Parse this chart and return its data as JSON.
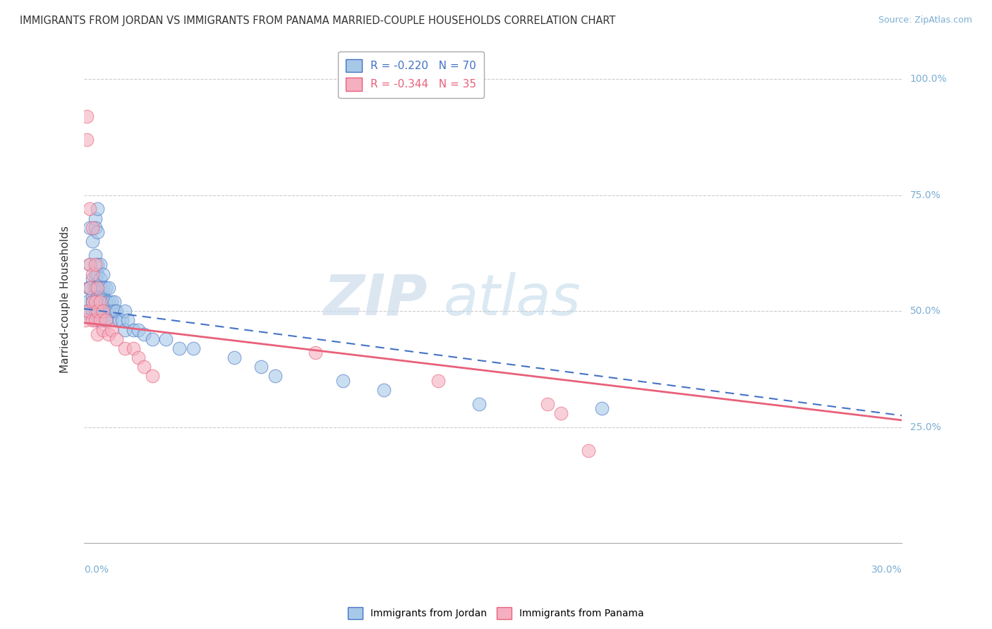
{
  "title": "IMMIGRANTS FROM JORDAN VS IMMIGRANTS FROM PANAMA MARRIED-COUPLE HOUSEHOLDS CORRELATION CHART",
  "source": "Source: ZipAtlas.com",
  "R_jordan": -0.22,
  "N_jordan": 70,
  "R_panama": -0.344,
  "N_panama": 35,
  "color_jordan": "#a8c8e8",
  "color_panama": "#f4b0c0",
  "line_color_jordan": "#4472c4",
  "line_color_panama": "#e8607a",
  "watermark_zip": "ZIP",
  "watermark_atlas": "atlas",
  "jordan_x": [
    0.0005,
    0.001,
    0.001,
    0.0015,
    0.002,
    0.002,
    0.002,
    0.003,
    0.003,
    0.003,
    0.003,
    0.003,
    0.004,
    0.004,
    0.004,
    0.004,
    0.004,
    0.004,
    0.004,
    0.005,
    0.005,
    0.005,
    0.005,
    0.005,
    0.005,
    0.005,
    0.005,
    0.006,
    0.006,
    0.006,
    0.006,
    0.006,
    0.006,
    0.007,
    0.007,
    0.007,
    0.007,
    0.007,
    0.008,
    0.008,
    0.008,
    0.008,
    0.009,
    0.009,
    0.009,
    0.01,
    0.01,
    0.01,
    0.011,
    0.011,
    0.012,
    0.013,
    0.014,
    0.015,
    0.015,
    0.016,
    0.018,
    0.02,
    0.022,
    0.025,
    0.03,
    0.035,
    0.04,
    0.055,
    0.065,
    0.07,
    0.095,
    0.11,
    0.145,
    0.19
  ],
  "jordan_y": [
    0.495,
    0.5,
    0.52,
    0.55,
    0.55,
    0.6,
    0.68,
    0.65,
    0.57,
    0.53,
    0.52,
    0.5,
    0.7,
    0.68,
    0.62,
    0.58,
    0.55,
    0.52,
    0.5,
    0.72,
    0.67,
    0.6,
    0.58,
    0.55,
    0.53,
    0.5,
    0.48,
    0.6,
    0.57,
    0.55,
    0.53,
    0.5,
    0.48,
    0.58,
    0.55,
    0.53,
    0.5,
    0.48,
    0.55,
    0.52,
    0.5,
    0.48,
    0.55,
    0.52,
    0.5,
    0.52,
    0.5,
    0.48,
    0.52,
    0.5,
    0.5,
    0.48,
    0.48,
    0.5,
    0.46,
    0.48,
    0.46,
    0.46,
    0.45,
    0.44,
    0.44,
    0.42,
    0.42,
    0.4,
    0.38,
    0.36,
    0.35,
    0.33,
    0.3,
    0.29
  ],
  "panama_x": [
    0.0005,
    0.001,
    0.001,
    0.0015,
    0.002,
    0.002,
    0.002,
    0.003,
    0.003,
    0.003,
    0.003,
    0.004,
    0.004,
    0.004,
    0.005,
    0.005,
    0.005,
    0.006,
    0.006,
    0.007,
    0.007,
    0.008,
    0.009,
    0.01,
    0.012,
    0.015,
    0.018,
    0.02,
    0.022,
    0.025,
    0.085,
    0.13,
    0.17,
    0.175,
    0.185
  ],
  "panama_y": [
    0.48,
    0.92,
    0.87,
    0.5,
    0.72,
    0.6,
    0.55,
    0.68,
    0.58,
    0.52,
    0.48,
    0.6,
    0.52,
    0.48,
    0.55,
    0.5,
    0.45,
    0.52,
    0.48,
    0.5,
    0.46,
    0.48,
    0.45,
    0.46,
    0.44,
    0.42,
    0.42,
    0.4,
    0.38,
    0.36,
    0.41,
    0.35,
    0.3,
    0.28,
    0.2
  ],
  "xlim": [
    0.0,
    0.3
  ],
  "ylim": [
    0.0,
    1.05
  ],
  "yticks": [
    0.0,
    0.25,
    0.5,
    0.75,
    1.0
  ],
  "background_color": "#ffffff",
  "grid_color": "#cccccc",
  "line_jordan_y0": 0.505,
  "line_jordan_y1": 0.275,
  "line_panama_y0": 0.475,
  "line_panama_y1": 0.265
}
